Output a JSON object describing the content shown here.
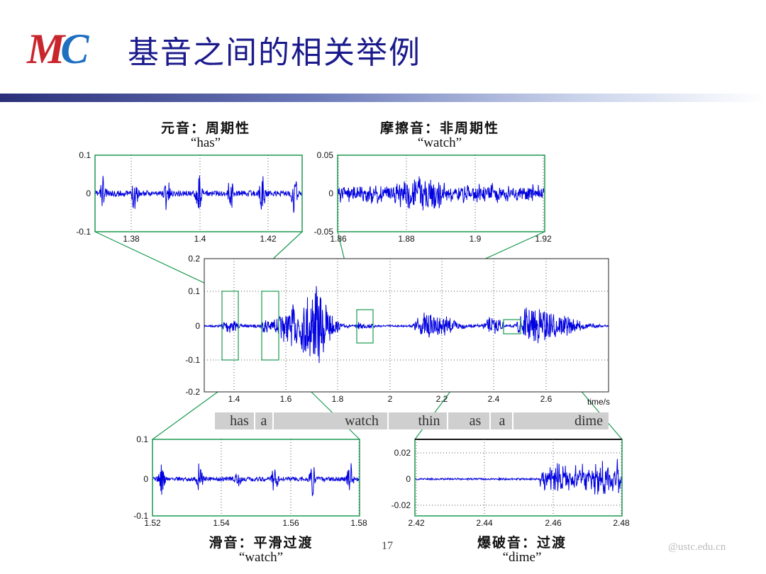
{
  "slide": {
    "title": "基音之间的相关举例",
    "logo_text": "MC",
    "page_number": "17",
    "watermark": "@ustc.edu.cn",
    "colors": {
      "title": "#1a1a8c",
      "waveform": "#0000e0",
      "zoom_box": "#1a9a50",
      "logo_m": "#c8262c",
      "logo_c": "#1e6fbf"
    }
  },
  "main_plot": {
    "x_ticks": [
      "1.4",
      "1.6",
      "1.8",
      "2",
      "2.2",
      "2.4",
      "2.6"
    ],
    "y_ticks": [
      "0.2",
      "0.1",
      "0",
      "-0.1",
      "-0.2"
    ],
    "x_unit": "time/s",
    "words": [
      "has",
      "a",
      "watch",
      "thin",
      "as",
      "a",
      "dime"
    ]
  },
  "panels": {
    "vowel": {
      "title": "元音：周期性",
      "subtitle": "“has”",
      "x_ticks": [
        "1.38",
        "1.4",
        "1.42"
      ],
      "y_ticks": [
        "0.1",
        "0",
        "-0.1"
      ]
    },
    "fricative": {
      "title": "摩擦音：非周期性",
      "subtitle": "“watch”",
      "x_ticks": [
        "1.86",
        "1.88",
        "1.9",
        "1.92"
      ],
      "y_ticks": [
        "0.05",
        "0",
        "-0.05"
      ]
    },
    "glide": {
      "title": "滑音：平滑过渡",
      "subtitle": "“watch”",
      "x_ticks": [
        "1.52",
        "1.54",
        "1.56",
        "1.58"
      ],
      "y_ticks": [
        "0.1",
        "0",
        "-0.1"
      ]
    },
    "plosive": {
      "title": "爆破音：过渡",
      "subtitle": "“dime”",
      "x_ticks": [
        "2.42",
        "2.44",
        "2.46",
        "2.48"
      ],
      "y_ticks": [
        "0.02",
        "0",
        "-0.02"
      ]
    }
  }
}
